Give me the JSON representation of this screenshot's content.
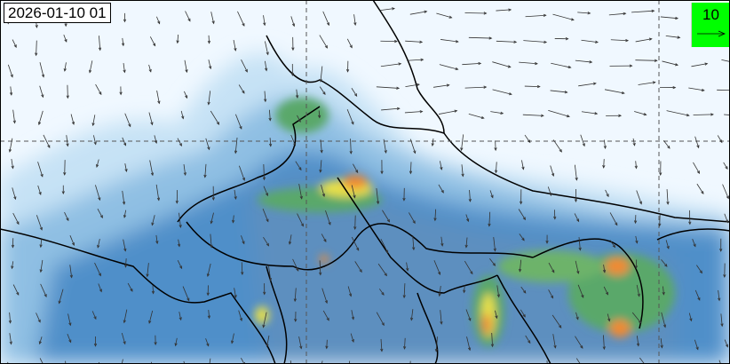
{
  "map": {
    "timestamp": "2026-01-10 01",
    "wind_reference": {
      "value": "10",
      "icon": "arrow-right-icon"
    },
    "colors": {
      "background": "#f0f8ff",
      "low": "#c6e2f5",
      "mid": "#4f8fc9",
      "green": "#5aa86a",
      "yellow": "#e8e04a",
      "orange": "#f08a30",
      "boundary": "#000000",
      "legend_bg": "#00ff00"
    }
  }
}
